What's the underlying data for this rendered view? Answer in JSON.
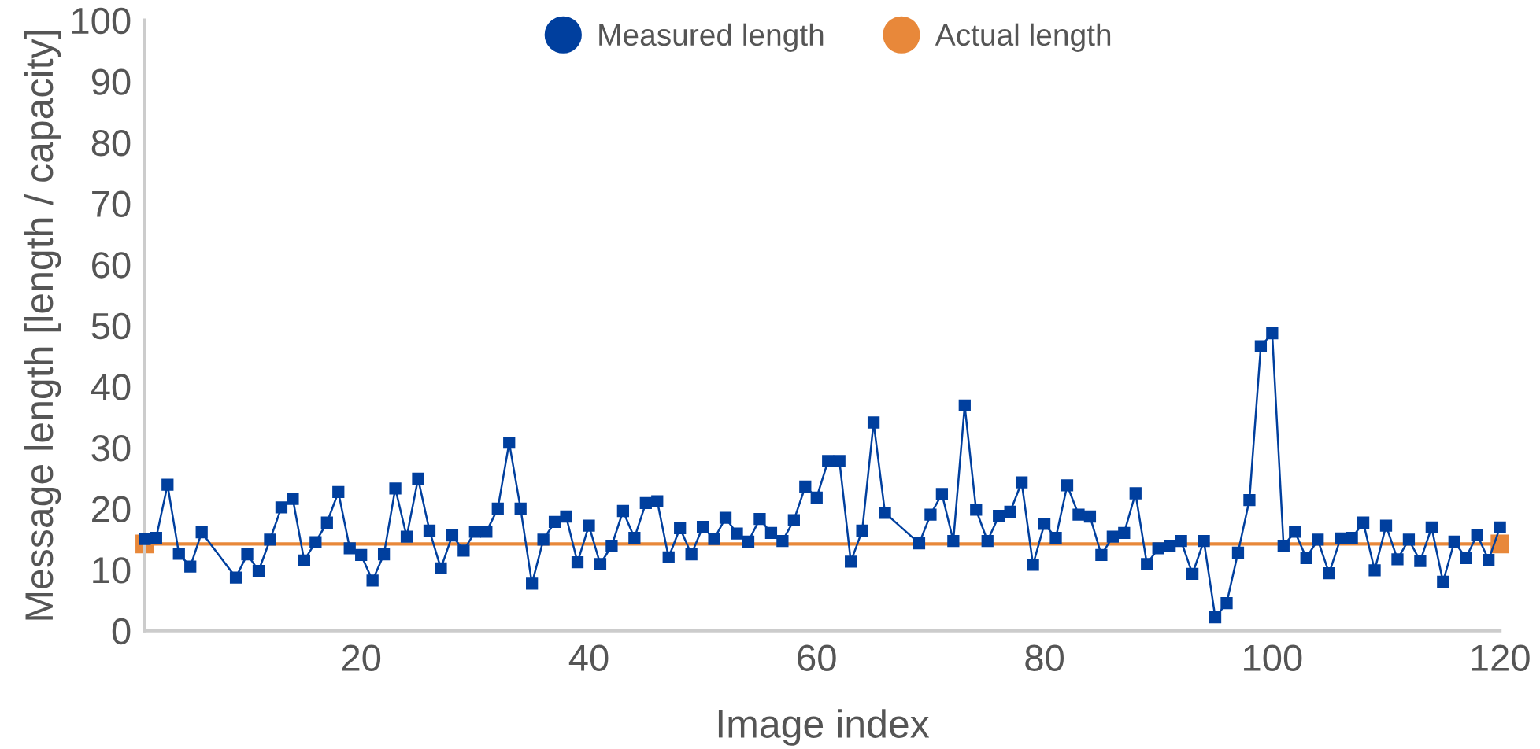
{
  "chart_data": {
    "type": "line",
    "xlabel": "Image index",
    "ylabel": "Message length [length / capacity]",
    "xlim": [
      1,
      120
    ],
    "ylim": [
      0,
      100
    ],
    "xticks": [
      20,
      40,
      60,
      80,
      100,
      120
    ],
    "yticks": [
      0,
      10,
      20,
      30,
      40,
      50,
      60,
      70,
      80,
      90,
      100
    ],
    "grid": false,
    "legend": "top",
    "marker": "square",
    "line_style": "solid",
    "series": [
      {
        "name": "Measured length",
        "color": "#003f9e",
        "x": [
          1,
          2,
          3,
          4,
          5,
          6,
          9,
          10,
          11,
          12,
          13,
          14,
          15,
          16,
          17,
          18,
          19,
          20,
          21,
          22,
          23,
          24,
          25,
          26,
          27,
          28,
          29,
          30,
          31,
          32,
          33,
          34,
          35,
          36,
          37,
          38,
          39,
          40,
          41,
          42,
          43,
          44,
          45,
          46,
          47,
          48,
          49,
          50,
          51,
          52,
          53,
          54,
          55,
          56,
          57,
          58,
          59,
          60,
          61,
          62,
          63,
          64,
          65,
          66,
          69,
          70,
          71,
          72,
          73,
          74,
          75,
          76,
          77,
          78,
          79,
          80,
          81,
          82,
          83,
          84,
          85,
          86,
          87,
          88,
          89,
          90,
          91,
          92,
          93,
          94,
          95,
          96,
          97,
          98,
          99,
          100,
          101,
          102,
          103,
          104,
          105,
          106,
          107,
          108,
          109,
          110,
          111,
          112,
          113,
          114,
          115,
          116,
          117,
          118,
          119,
          120
        ],
        "values": [
          15.0,
          15.2,
          23.9,
          12.6,
          10.5,
          16.1,
          8.7,
          12.5,
          9.8,
          14.9,
          20.2,
          21.6,
          11.5,
          14.5,
          17.7,
          22.7,
          13.5,
          12.4,
          8.2,
          12.5,
          23.3,
          15.4,
          24.9,
          16.4,
          10.2,
          15.6,
          13.1,
          16.2,
          16.2,
          20.0,
          30.8,
          20.0,
          7.7,
          14.9,
          17.8,
          18.7,
          11.2,
          17.2,
          10.9,
          13.9,
          19.6,
          15.2,
          20.9,
          21.2,
          12.0,
          16.8,
          12.5,
          17.0,
          15.0,
          18.5,
          15.9,
          14.6,
          18.3,
          16.0,
          14.7,
          18.1,
          23.6,
          21.8,
          27.8,
          27.8,
          11.3,
          16.4,
          34.1,
          19.3,
          14.3,
          19.0,
          22.4,
          14.7,
          36.9,
          19.8,
          14.7,
          18.8,
          19.5,
          24.3,
          10.8,
          17.5,
          15.2,
          23.8,
          19.0,
          18.7,
          12.4,
          15.4,
          16.0,
          22.5,
          10.9,
          13.5,
          13.9,
          14.7,
          9.3,
          14.7,
          2.2,
          4.5,
          12.8,
          21.4,
          46.6,
          48.7,
          13.9,
          16.2,
          11.9,
          14.9,
          9.4,
          15.1,
          15.2,
          17.7,
          9.9,
          17.2,
          11.7,
          14.9,
          11.4,
          16.9,
          8.0,
          14.6,
          11.9,
          15.7,
          11.6,
          16.9
        ]
      },
      {
        "name": "Actual length",
        "color": "#e8883a",
        "x": [
          1,
          120
        ],
        "values": [
          14.2,
          14.2
        ]
      }
    ]
  }
}
